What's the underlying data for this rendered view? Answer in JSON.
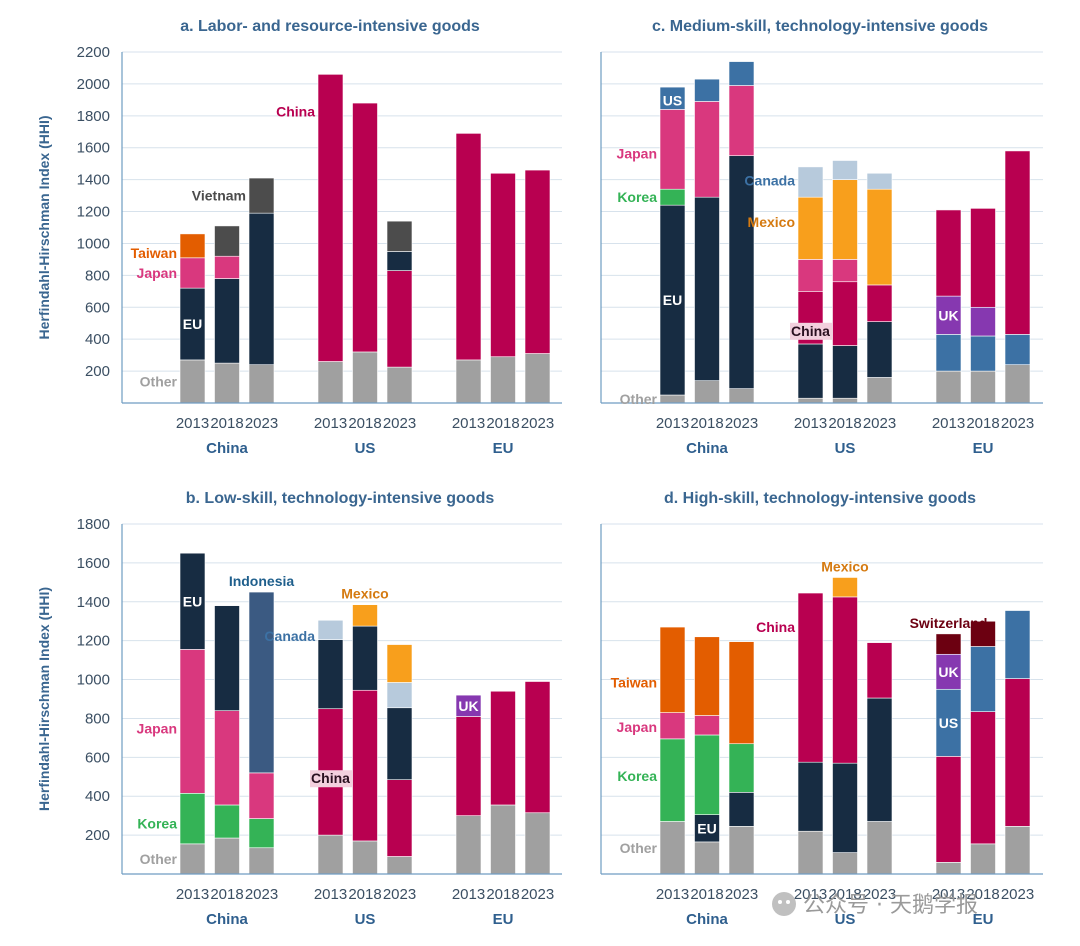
{
  "colors": {
    "Other": "#a0a0a0",
    "EU": "#172c42",
    "China": "#b80050",
    "Japan": "#d9387e",
    "Taiwan": "#e35d00",
    "Vietnam": "#4c4c4c",
    "Korea": "#34b356",
    "US": "#3c71a4",
    "Canada": "#b7cadc",
    "Mexico": "#f89f1c",
    "UK": "#8638b0",
    "Indonesia": "#3b5a82",
    "Switzerland": "#6c0011"
  },
  "label_colors": {
    "Other": "#a0a0a0",
    "EU": "#ffffff",
    "China": "#b80050",
    "Japan": "#d9387e",
    "Taiwan": "#e35d00",
    "Vietnam": "#4c4c4c",
    "Korea": "#34b356",
    "US": "#ffffff",
    "Canada": "#3c71a4",
    "Mexico": "#d57a10",
    "UK": "#ffffff",
    "Indonesia": "#1f5f8c",
    "Switzerland": "#6c0011"
  },
  "chart_data": [
    {
      "id": "a",
      "type": "bar",
      "stacked": true,
      "title": "a. Labor- and resource-intensive goods",
      "ylabel": "Herfindahl-Hirschman Index (HHI)",
      "ylim": [
        0,
        2200
      ],
      "yticks": [
        200,
        400,
        600,
        800,
        1000,
        1200,
        1400,
        1600,
        1800,
        2000,
        2200
      ],
      "groups": [
        "China",
        "US",
        "EU"
      ],
      "years": [
        "2013",
        "2018",
        "2023"
      ],
      "bars": [
        [
          {
            "k": "Other",
            "v": 270
          },
          {
            "k": "EU",
            "v": 450
          },
          {
            "k": "Japan",
            "v": 190
          },
          {
            "k": "Taiwan",
            "v": 150
          }
        ],
        [
          {
            "k": "Other",
            "v": 250
          },
          {
            "k": "EU",
            "v": 530
          },
          {
            "k": "Japan",
            "v": 140
          },
          {
            "k": "Vietnam",
            "v": 190
          }
        ],
        [
          {
            "k": "Other",
            "v": 240
          },
          {
            "k": "EU",
            "v": 950
          },
          {
            "k": "Vietnam",
            "v": 220
          }
        ],
        [
          {
            "k": "Other",
            "v": 260
          },
          {
            "k": "China",
            "v": 1800
          }
        ],
        [
          {
            "k": "Other",
            "v": 320
          },
          {
            "k": "China",
            "v": 1560
          }
        ],
        [
          {
            "k": "Other",
            "v": 225
          },
          {
            "k": "China",
            "v": 605
          },
          {
            "k": "EU",
            "v": 120
          },
          {
            "k": "Vietnam",
            "v": 190
          }
        ],
        [
          {
            "k": "Other",
            "v": 270
          },
          {
            "k": "China",
            "v": 1420
          }
        ],
        [
          {
            "k": "Other",
            "v": 290
          },
          {
            "k": "China",
            "v": 1150
          }
        ],
        [
          {
            "k": "Other",
            "v": 310
          },
          {
            "k": "China",
            "v": 1150
          }
        ]
      ],
      "annotations": [
        {
          "text": "Other",
          "k": "Other",
          "bar": 0,
          "pos": 0.5,
          "side": "left"
        },
        {
          "text": "EU",
          "k": "EU",
          "bar": 0,
          "pos": 0.5,
          "side": "inside"
        },
        {
          "text": "Japan",
          "k": "Japan",
          "bar": 0,
          "pos": 0.5,
          "side": "left"
        },
        {
          "text": "Taiwan",
          "k": "Taiwan",
          "bar": 0,
          "pos": 0.2,
          "side": "left"
        },
        {
          "text": "Vietnam",
          "k": "Vietnam",
          "bar": 2,
          "pos": 0.5,
          "side": "left"
        },
        {
          "text": "China",
          "k": "China",
          "bar": 3,
          "pos": 0.87,
          "side": "left"
        }
      ]
    },
    {
      "id": "c",
      "type": "bar",
      "stacked": true,
      "title": "c. Medium-skill, technology-intensive goods",
      "ylabel": "",
      "ylim": [
        0,
        2200
      ],
      "yticks": [],
      "groups": [
        "China",
        "US",
        "EU"
      ],
      "years": [
        "2013",
        "2018",
        "2023"
      ],
      "bars": [
        [
          {
            "k": "Other",
            "v": 50
          },
          {
            "k": "EU",
            "v": 1190
          },
          {
            "k": "Korea",
            "v": 100
          },
          {
            "k": "Japan",
            "v": 500
          },
          {
            "k": "US",
            "v": 140
          }
        ],
        [
          {
            "k": "Other",
            "v": 140
          },
          {
            "k": "EU",
            "v": 1150
          },
          {
            "k": "Japan",
            "v": 600
          },
          {
            "k": "US",
            "v": 140
          }
        ],
        [
          {
            "k": "Other",
            "v": 90
          },
          {
            "k": "EU",
            "v": 1460
          },
          {
            "k": "Japan",
            "v": 440
          },
          {
            "k": "US",
            "v": 150
          }
        ],
        [
          {
            "k": "Other",
            "v": 30
          },
          {
            "k": "EU",
            "v": 340
          },
          {
            "k": "China",
            "v": 330
          },
          {
            "k": "Japan",
            "v": 200
          },
          {
            "k": "Mexico",
            "v": 390
          },
          {
            "k": "Canada",
            "v": 190
          }
        ],
        [
          {
            "k": "Other",
            "v": 30
          },
          {
            "k": "EU",
            "v": 330
          },
          {
            "k": "China",
            "v": 400
          },
          {
            "k": "Japan",
            "v": 140
          },
          {
            "k": "Mexico",
            "v": 500
          },
          {
            "k": "Canada",
            "v": 120
          }
        ],
        [
          {
            "k": "Other",
            "v": 160
          },
          {
            "k": "EU",
            "v": 350
          },
          {
            "k": "China",
            "v": 230
          },
          {
            "k": "Mexico",
            "v": 600
          },
          {
            "k": "Canada",
            "v": 100
          }
        ],
        [
          {
            "k": "Other",
            "v": 200
          },
          {
            "k": "US",
            "v": 230
          },
          {
            "k": "UK",
            "v": 240
          },
          {
            "k": "China",
            "v": 540
          }
        ],
        [
          {
            "k": "Other",
            "v": 200
          },
          {
            "k": "US",
            "v": 220
          },
          {
            "k": "UK",
            "v": 180
          },
          {
            "k": "China",
            "v": 620
          }
        ],
        [
          {
            "k": "Other",
            "v": 240
          },
          {
            "k": "US",
            "v": 190
          },
          {
            "k": "China",
            "v": 1150
          }
        ]
      ],
      "annotations": [
        {
          "text": "Other",
          "k": "Other",
          "bar": 0,
          "pos": 0.5,
          "side": "left"
        },
        {
          "text": "EU",
          "k": "EU",
          "bar": 0,
          "pos": 0.5,
          "side": "inside"
        },
        {
          "text": "Korea",
          "k": "Korea",
          "bar": 0,
          "pos": 0.5,
          "side": "left"
        },
        {
          "text": "Japan",
          "k": "Japan",
          "bar": 0,
          "pos": 0.45,
          "side": "left"
        },
        {
          "text": "US",
          "k": "US",
          "bar": 0,
          "pos": 0.4,
          "side": "inside"
        },
        {
          "text": "Canada",
          "k": "Canada",
          "bar": 3,
          "pos": 0.55,
          "side": "left"
        },
        {
          "text": "Mexico",
          "k": "Mexico",
          "bar": 3,
          "pos": 0.6,
          "side": "left"
        },
        {
          "text": "China",
          "k": "China",
          "bar": 3,
          "pos": 0.25,
          "side": "inside-dark"
        },
        {
          "text": "UK",
          "k": "UK",
          "bar": 6,
          "pos": 0.5,
          "side": "inside"
        }
      ]
    },
    {
      "id": "b",
      "type": "bar",
      "stacked": true,
      "title": "b. Low-skill, technology-intensive goods",
      "ylabel": "Herfindahl-Hirschman Index (HHI)",
      "ylim": [
        0,
        1800
      ],
      "yticks": [
        200,
        400,
        600,
        800,
        1000,
        1200,
        1400,
        1600,
        1800
      ],
      "groups": [
        "China",
        "US",
        "EU"
      ],
      "years": [
        "2013",
        "2018",
        "2023"
      ],
      "bars": [
        [
          {
            "k": "Other",
            "v": 155
          },
          {
            "k": "Korea",
            "v": 260
          },
          {
            "k": "Japan",
            "v": 740
          },
          {
            "k": "EU",
            "v": 495
          }
        ],
        [
          {
            "k": "Other",
            "v": 185
          },
          {
            "k": "Korea",
            "v": 170
          },
          {
            "k": "Japan",
            "v": 485
          },
          {
            "k": "EU",
            "v": 540
          }
        ],
        [
          {
            "k": "Other",
            "v": 135
          },
          {
            "k": "Korea",
            "v": 150
          },
          {
            "k": "Japan",
            "v": 235
          },
          {
            "k": "Indonesia",
            "v": 930
          }
        ],
        [
          {
            "k": "Other",
            "v": 200
          },
          {
            "k": "China",
            "v": 650
          },
          {
            "k": "EU",
            "v": 355
          },
          {
            "k": "Canada",
            "v": 100
          }
        ],
        [
          {
            "k": "Other",
            "v": 170
          },
          {
            "k": "China",
            "v": 775
          },
          {
            "k": "EU",
            "v": 330
          },
          {
            "k": "Mexico",
            "v": 110
          }
        ],
        [
          {
            "k": "Other",
            "v": 90
          },
          {
            "k": "China",
            "v": 395
          },
          {
            "k": "EU",
            "v": 370
          },
          {
            "k": "Canada",
            "v": 130
          },
          {
            "k": "Mexico",
            "v": 195
          }
        ],
        [
          {
            "k": "Other",
            "v": 300
          },
          {
            "k": "China",
            "v": 510
          },
          {
            "k": "UK",
            "v": 110
          }
        ],
        [
          {
            "k": "Other",
            "v": 355
          },
          {
            "k": "China",
            "v": 585
          }
        ],
        [
          {
            "k": "Other",
            "v": 315
          },
          {
            "k": "China",
            "v": 675
          }
        ]
      ],
      "annotations": [
        {
          "text": "Other",
          "k": "Other",
          "bar": 0,
          "pos": 0.5,
          "side": "left"
        },
        {
          "text": "Korea",
          "k": "Korea",
          "bar": 0,
          "pos": 0.4,
          "side": "left"
        },
        {
          "text": "Japan",
          "k": "Japan",
          "bar": 0,
          "pos": 0.45,
          "side": "left"
        },
        {
          "text": "EU",
          "k": "EU",
          "bar": 0,
          "pos": 0.5,
          "side": "inside"
        },
        {
          "text": "Indonesia",
          "k": "Indonesia",
          "bar": 2,
          "pos": 1.0,
          "side": "above"
        },
        {
          "text": "Canada",
          "k": "Canada",
          "bar": 3,
          "pos": 0.2,
          "side": "left"
        },
        {
          "text": "China",
          "k": "China",
          "bar": 3,
          "pos": 0.45,
          "side": "inside-dark"
        },
        {
          "text": "Mexico",
          "k": "Mexico",
          "bar": 4,
          "pos": 1.0,
          "side": "above"
        },
        {
          "text": "UK",
          "k": "UK",
          "bar": 6,
          "pos": 0.5,
          "side": "inside"
        }
      ]
    },
    {
      "id": "d",
      "type": "bar",
      "stacked": true,
      "title": "d. High-skill, technology-intensive goods",
      "ylabel": "",
      "ylim": [
        0,
        1800
      ],
      "yticks": [],
      "groups": [
        "China",
        "US",
        "EU"
      ],
      "years": [
        "2013",
        "2018",
        "2023"
      ],
      "bars": [
        [
          {
            "k": "Other",
            "v": 270
          },
          {
            "k": "Korea",
            "v": 425
          },
          {
            "k": "Japan",
            "v": 135
          },
          {
            "k": "Taiwan",
            "v": 440
          }
        ],
        [
          {
            "k": "Other",
            "v": 165
          },
          {
            "k": "EU",
            "v": 140
          },
          {
            "k": "Korea",
            "v": 410
          },
          {
            "k": "Japan",
            "v": 100
          },
          {
            "k": "Taiwan",
            "v": 405
          }
        ],
        [
          {
            "k": "Other",
            "v": 245
          },
          {
            "k": "EU",
            "v": 175
          },
          {
            "k": "Korea",
            "v": 250
          },
          {
            "k": "Taiwan",
            "v": 525
          }
        ],
        [
          {
            "k": "Other",
            "v": 220
          },
          {
            "k": "EU",
            "v": 355
          },
          {
            "k": "China",
            "v": 870
          }
        ],
        [
          {
            "k": "Other",
            "v": 110
          },
          {
            "k": "EU",
            "v": 460
          },
          {
            "k": "China",
            "v": 855
          },
          {
            "k": "Mexico",
            "v": 100
          }
        ],
        [
          {
            "k": "Other",
            "v": 270
          },
          {
            "k": "EU",
            "v": 635
          },
          {
            "k": "China",
            "v": 285
          }
        ],
        [
          {
            "k": "Other",
            "v": 60
          },
          {
            "k": "China",
            "v": 545
          },
          {
            "k": "US",
            "v": 345
          },
          {
            "k": "UK",
            "v": 180
          },
          {
            "k": "Switzerland",
            "v": 105
          }
        ],
        [
          {
            "k": "Other",
            "v": 155
          },
          {
            "k": "China",
            "v": 680
          },
          {
            "k": "US",
            "v": 335
          },
          {
            "k": "Switzerland",
            "v": 130
          }
        ],
        [
          {
            "k": "Other",
            "v": 245
          },
          {
            "k": "China",
            "v": 760
          },
          {
            "k": "US",
            "v": 350
          }
        ]
      ],
      "annotations": [
        {
          "text": "Other",
          "k": "Other",
          "bar": 0,
          "pos": 0.5,
          "side": "left"
        },
        {
          "text": "Korea",
          "k": "Korea",
          "bar": 0,
          "pos": 0.55,
          "side": "left"
        },
        {
          "text": "Japan",
          "k": "Japan",
          "bar": 0,
          "pos": 0.45,
          "side": "left"
        },
        {
          "text": "Taiwan",
          "k": "Taiwan",
          "bar": 0,
          "pos": 0.35,
          "side": "left"
        },
        {
          "text": "EU",
          "k": "EU",
          "bar": 1,
          "pos": 0.5,
          "side": "inside"
        },
        {
          "text": "China",
          "k": "China",
          "bar": 3,
          "pos": 0.8,
          "side": "left"
        },
        {
          "text": "Mexico",
          "k": "Mexico",
          "bar": 4,
          "pos": 1.0,
          "side": "above"
        },
        {
          "text": "US",
          "k": "US",
          "bar": 6,
          "pos": 0.5,
          "side": "inside"
        },
        {
          "text": "UK",
          "k": "UK",
          "bar": 6,
          "pos": 0.5,
          "side": "inside"
        },
        {
          "text": "Switzerland",
          "k": "Switzerland",
          "bar": 6,
          "pos": 1.0,
          "side": "above"
        }
      ]
    }
  ],
  "watermark": "公众号 · 天鹅学报"
}
